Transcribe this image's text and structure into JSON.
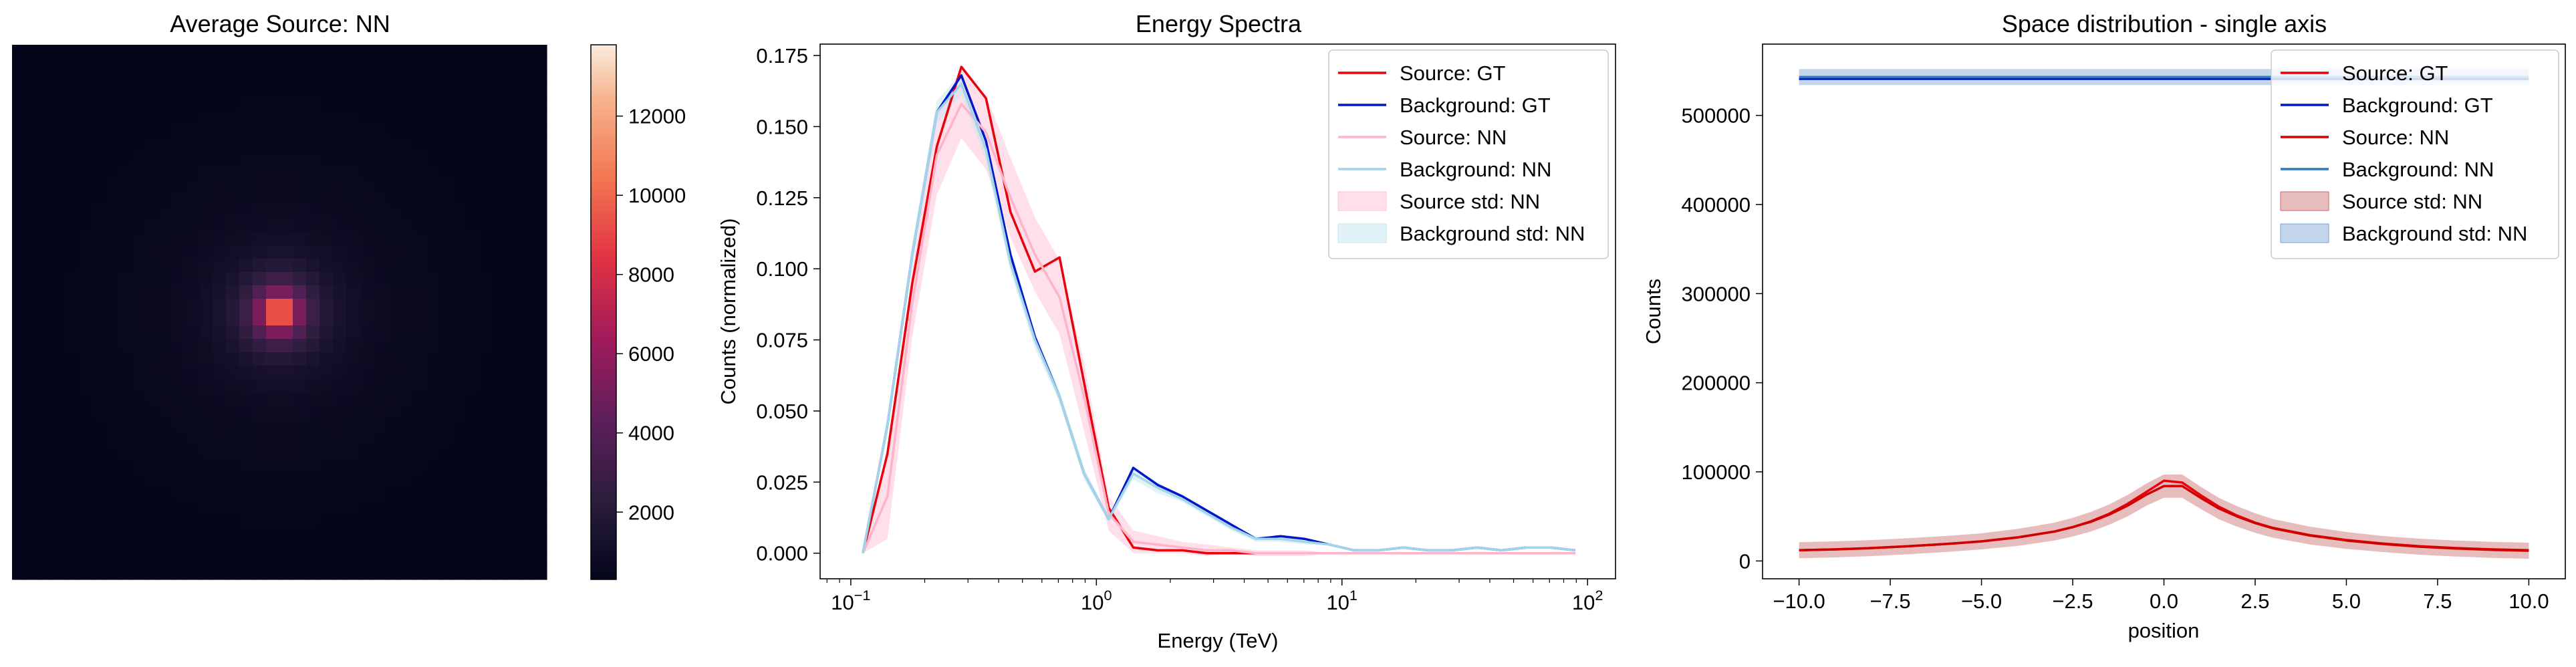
{
  "chart_data": [
    {
      "type": "heatmap",
      "title": "Average Source: NN",
      "grid_size": 40,
      "peak_cell": [
        20,
        20
      ],
      "peak_value": 13800,
      "colorbar": {
        "min": 300,
        "max": 13800,
        "ticks": [
          2000,
          4000,
          6000,
          8000,
          10000,
          12000
        ]
      },
      "colormap": "rocket",
      "axes_visible": false
    },
    {
      "type": "line",
      "title": "Energy Spectra",
      "xlabel": "Energy (TeV)",
      "ylabel": "Counts (normalized)",
      "xscale": "log",
      "xlim": [
        0.075,
        130
      ],
      "ylim": [
        -0.009,
        0.179
      ],
      "xticks": [
        0.1,
        1,
        10,
        100
      ],
      "xtick_labels": [
        {
          "base": "10",
          "exp": "−1"
        },
        {
          "base": "10",
          "exp": "0"
        },
        {
          "base": "10",
          "exp": "1"
        },
        {
          "base": "10",
          "exp": "2"
        }
      ],
      "yticks": [
        "0.000",
        "0.025",
        "0.050",
        "0.075",
        "0.100",
        "0.125",
        "0.150",
        "0.175"
      ],
      "legend_position": "top-right",
      "x": [
        0.112,
        0.141,
        0.178,
        0.224,
        0.282,
        0.355,
        0.447,
        0.562,
        0.708,
        0.891,
        1.122,
        1.413,
        1.778,
        2.239,
        2.818,
        3.548,
        4.467,
        5.623,
        7.079,
        8.913,
        11.22,
        14.13,
        17.78,
        22.39,
        28.18,
        35.48,
        44.67,
        56.23,
        70.79,
        89.13
      ],
      "series": [
        {
          "name": "Source: GT",
          "color": "#e8000b",
          "values": [
            0.0,
            0.035,
            0.095,
            0.143,
            0.171,
            0.16,
            0.12,
            0.099,
            0.104,
            0.06,
            0.016,
            0.002,
            0.001,
            0.001,
            0.0,
            0.0,
            0.0,
            0.0,
            0.0,
            0.0,
            0.0,
            0.0,
            0.0,
            0.0,
            0.0,
            0.0,
            0.0,
            0.0,
            0.0,
            0.0
          ]
        },
        {
          "name": "Background: GT",
          "color": "#0018c8",
          "values": [
            0.0,
            0.045,
            0.105,
            0.155,
            0.168,
            0.145,
            0.105,
            0.076,
            0.055,
            0.028,
            0.012,
            0.03,
            0.024,
            0.02,
            0.015,
            0.01,
            0.005,
            0.006,
            0.005,
            0.003,
            0.001,
            0.001,
            0.002,
            0.001,
            0.001,
            0.002,
            0.001,
            0.002,
            0.002,
            0.001
          ]
        },
        {
          "name": "Source: NN",
          "color": "#ffb3c8",
          "values": [
            0.0,
            0.02,
            0.088,
            0.14,
            0.158,
            0.148,
            0.125,
            0.105,
            0.09,
            0.055,
            0.014,
            0.004,
            0.003,
            0.002,
            0.001,
            0.001,
            0.0,
            0.0,
            0.0,
            0.0,
            0.0,
            0.0,
            0.0,
            0.0,
            0.0,
            0.0,
            0.0,
            0.0,
            0.0,
            0.0
          ]
        },
        {
          "name": "Background: NN",
          "color": "#a3d4e8",
          "values": [
            0.0,
            0.045,
            0.105,
            0.155,
            0.165,
            0.142,
            0.102,
            0.075,
            0.055,
            0.028,
            0.012,
            0.028,
            0.023,
            0.019,
            0.014,
            0.009,
            0.005,
            0.005,
            0.004,
            0.003,
            0.001,
            0.001,
            0.002,
            0.001,
            0.001,
            0.002,
            0.001,
            0.002,
            0.002,
            0.001
          ]
        }
      ],
      "bands": [
        {
          "name": "Source std: NN",
          "color": "#ffc0d4",
          "opacity": 0.5,
          "of": "Source: NN",
          "halfwidth": [
            0.0,
            0.015,
            0.012,
            0.014,
            0.012,
            0.013,
            0.014,
            0.013,
            0.013,
            0.012,
            0.006,
            0.004,
            0.003,
            0.002,
            0.002,
            0.001,
            0.001,
            0.001,
            0.001,
            0.0,
            0.0,
            0.0,
            0.0,
            0.0,
            0.0,
            0.0,
            0.0,
            0.0,
            0.0,
            0.0
          ]
        },
        {
          "name": "Background std: NN",
          "color": "#c6e6f3",
          "opacity": 0.5,
          "of": "Background: NN",
          "halfwidth": [
            0.0,
            0.003,
            0.004,
            0.004,
            0.004,
            0.004,
            0.003,
            0.003,
            0.002,
            0.002,
            0.001,
            0.002,
            0.002,
            0.001,
            0.001,
            0.001,
            0.001,
            0.001,
            0.001,
            0.0,
            0.0,
            0.0,
            0.0,
            0.0,
            0.0,
            0.0,
            0.0,
            0.0,
            0.0,
            0.0
          ]
        }
      ]
    },
    {
      "type": "line",
      "title": "Space distribution - single axis",
      "xlabel": "position",
      "ylabel": "Counts",
      "xlim": [
        -11,
        11
      ],
      "ylim": [
        -20000,
        580000
      ],
      "xticks": [
        -10.0,
        -7.5,
        -5.0,
        -2.5,
        0.0,
        2.5,
        5.0,
        7.5,
        10.0
      ],
      "xtick_labels": [
        "−10.0",
        "−7.5",
        "−5.0",
        "−2.5",
        "0.0",
        "2.5",
        "5.0",
        "7.5",
        "10.0"
      ],
      "yticks": [
        0,
        100000,
        200000,
        300000,
        400000,
        500000
      ],
      "ytick_labels": [
        "0",
        "100000",
        "200000",
        "300000",
        "400000",
        "500000"
      ],
      "legend_position": "top-right",
      "x": [
        -10.0,
        -9.0,
        -8.0,
        -7.0,
        -6.0,
        -5.0,
        -4.0,
        -3.0,
        -2.5,
        -2.0,
        -1.5,
        -1.0,
        -0.5,
        0.0,
        0.5,
        1.0,
        1.5,
        2.0,
        2.5,
        3.0,
        4.0,
        5.0,
        6.0,
        7.0,
        8.0,
        9.0,
        10.0
      ],
      "series": [
        {
          "name": "Source: GT",
          "color": "#e8000b",
          "values": [
            12000,
            13000,
            14500,
            16500,
            19000,
            22000,
            26500,
            33000,
            38000,
            44500,
            53000,
            64000,
            77000,
            90000,
            88000,
            74000,
            61000,
            51000,
            43000,
            37000,
            29000,
            23500,
            19500,
            16500,
            14500,
            13000,
            12000
          ]
        },
        {
          "name": "Background: GT",
          "color": "#0018c8",
          "values": [
            541000,
            541000,
            541000,
            541000,
            541000,
            541000,
            541000,
            541000,
            541000,
            541000,
            541000,
            541000,
            541000,
            541000,
            541000,
            541000,
            541000,
            541000,
            541000,
            541000,
            541000,
            541000,
            541000,
            541000,
            541000,
            541000,
            541000
          ]
        },
        {
          "name": "Source: NN",
          "color": "#d00000",
          "values": [
            12000,
            13000,
            14500,
            16500,
            19000,
            22000,
            26500,
            33000,
            38000,
            44000,
            52000,
            62000,
            74000,
            84000,
            84000,
            71000,
            59000,
            50000,
            42500,
            36500,
            28500,
            23000,
            19000,
            16000,
            14000,
            12500,
            11500
          ]
        },
        {
          "name": "Background: NN",
          "color": "#2f78c4",
          "values": [
            543000,
            543000,
            543000,
            543000,
            543000,
            543000,
            543000,
            543000,
            543000,
            543000,
            543000,
            543000,
            543000,
            543000,
            543000,
            543000,
            543000,
            543000,
            543000,
            543000,
            543000,
            543000,
            543000,
            543000,
            543000,
            543000,
            543000
          ]
        }
      ],
      "bands": [
        {
          "name": "Source std: NN",
          "color": "#c96a6a",
          "opacity": 0.45,
          "of": "Source: NN",
          "halfwidth": [
            9000,
            9000,
            9000,
            9000,
            9000,
            9000,
            9500,
            10000,
            10500,
            11000,
            11500,
            12000,
            12500,
            13000,
            13000,
            12500,
            12000,
            11500,
            11000,
            10500,
            10000,
            9500,
            9000,
            9000,
            9000,
            9000,
            9000
          ]
        },
        {
          "name": "Background std: NN",
          "color": "#7aa3d4",
          "opacity": 0.45,
          "of": "Background: NN",
          "halfwidth": [
            9000,
            9000,
            9000,
            9000,
            9000,
            9000,
            9000,
            9000,
            9000,
            9000,
            9000,
            9000,
            9000,
            9000,
            9000,
            9000,
            9000,
            9000,
            9000,
            9000,
            9000,
            9000,
            9000,
            9000,
            9000,
            9000,
            9000
          ]
        }
      ]
    }
  ]
}
